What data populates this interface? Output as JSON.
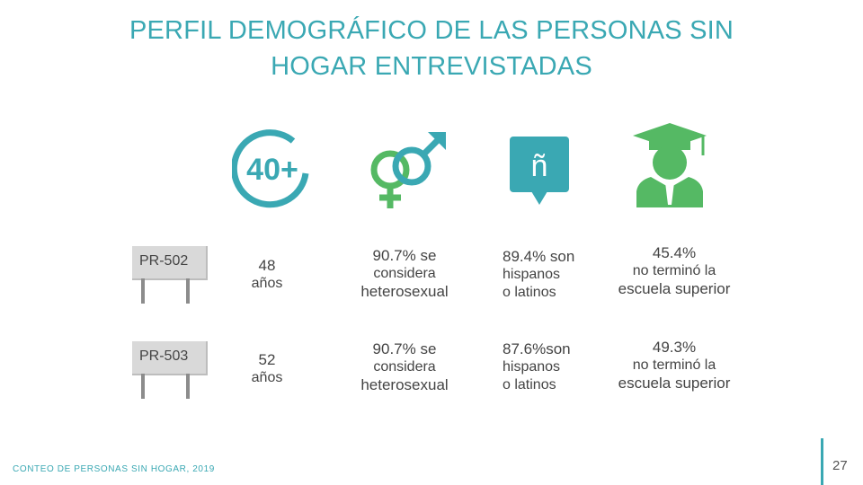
{
  "title": {
    "line1": "PERFIL DEMOGRÁFICO DE LAS PERSONAS SIN",
    "line2": "HOGAR ENTREVISTADAS"
  },
  "icons": {
    "age": "age-40-plus-icon",
    "gender": "gender-symbols-icon",
    "language": "speech-bubble-n-icon",
    "education": "graduate-icon",
    "age_text": "40+",
    "language_text": "ñ"
  },
  "colors": {
    "teal": "#3aa8b3",
    "green": "#55b964",
    "text": "#444444"
  },
  "rows": [
    {
      "sign": "PR-502",
      "age_value": "48",
      "age_unit": "años",
      "hetero_pct": "90.7% se",
      "hetero_l2": "considera",
      "hetero_l3": "heterosexual",
      "hisp_l1": "89.4% son",
      "hisp_l2": "hispanos",
      "hisp_l3": "o latinos",
      "edu_pct": "45.4%",
      "edu_l2": "no terminó la",
      "edu_l3": "escuela superior"
    },
    {
      "sign": "PR-503",
      "age_value": "52",
      "age_unit": "años",
      "hetero_pct": "90.7% se",
      "hetero_l2": "considera",
      "hetero_l3": "heterosexual",
      "hisp_l1": "87.6%son",
      "hisp_l2": "hispanos",
      "hisp_l3": "o latinos",
      "edu_pct": "49.3%",
      "edu_l2": "no terminó la",
      "edu_l3": "escuela superior"
    }
  ],
  "footer": "CONTEO DE PERSONAS SIN HOGAR, 2019",
  "page_number": "27"
}
